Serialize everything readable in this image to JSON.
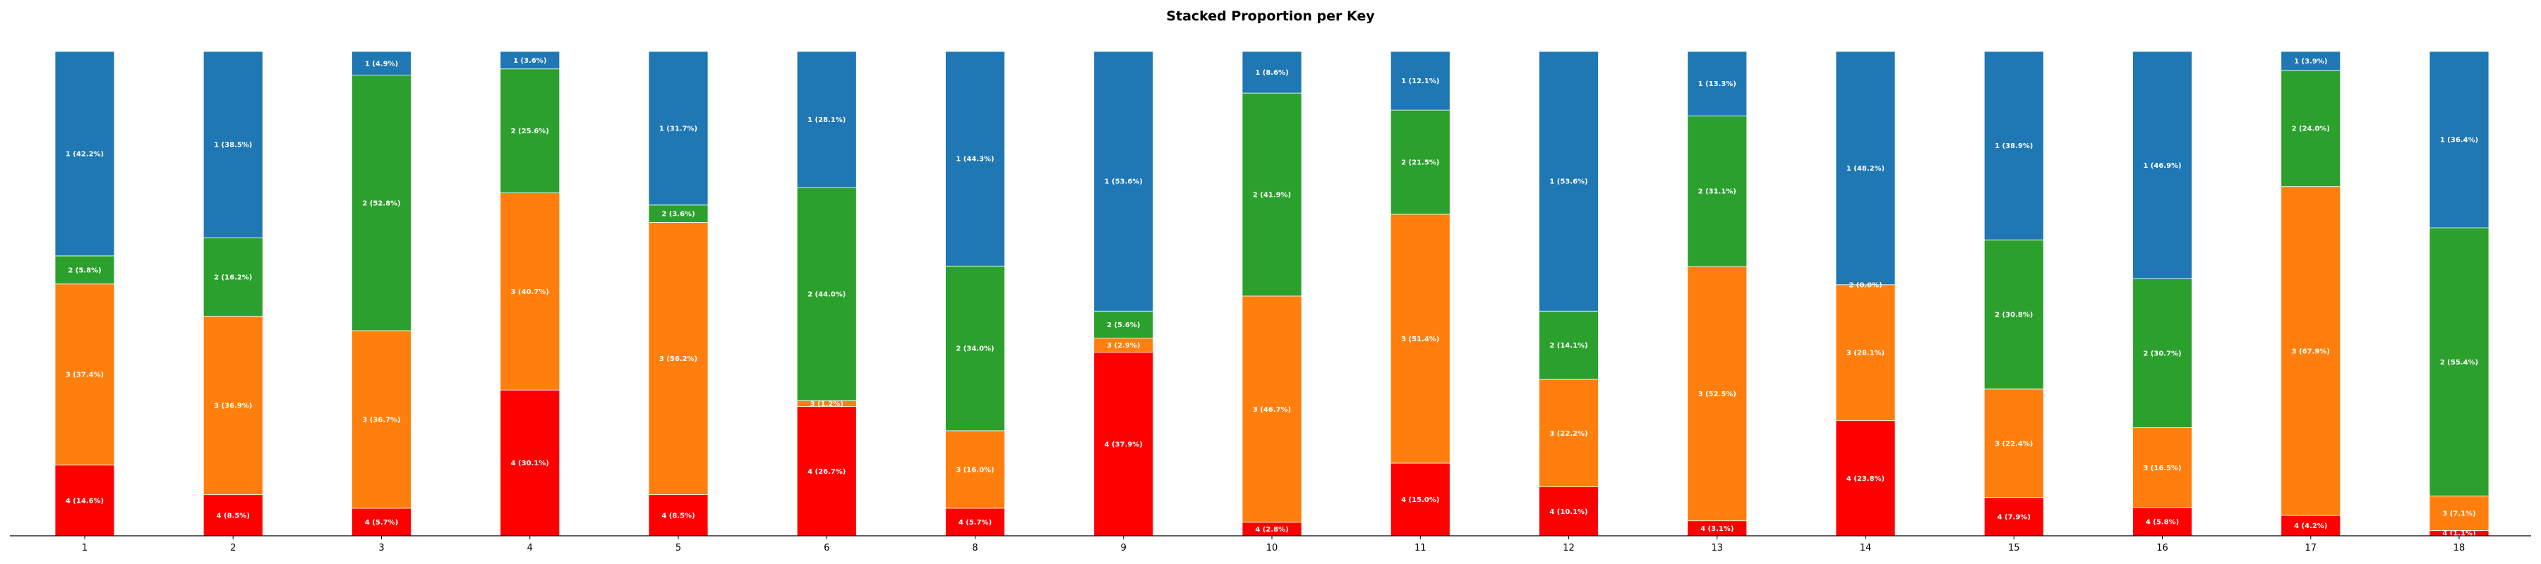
{
  "chart_data": {
    "type": "bar",
    "stacked": true,
    "title": "Stacked Proportion per Key",
    "xlabel": "",
    "ylabel": "",
    "ylim": [
      0,
      100
    ],
    "categories": [
      "1",
      "2",
      "3",
      "4",
      "5",
      "6",
      "8",
      "9",
      "10",
      "11",
      "12",
      "13",
      "14",
      "15",
      "16",
      "17",
      "18"
    ],
    "series": [
      {
        "name": "4",
        "color": "#ff0000",
        "values": [
          14.6,
          8.5,
          5.7,
          30.1,
          8.5,
          26.7,
          5.7,
          37.9,
          2.8,
          15.0,
          10.1,
          3.1,
          23.8,
          7.9,
          5.8,
          4.2,
          1.1
        ]
      },
      {
        "name": "3",
        "color": "#ff7f0e",
        "values": [
          37.4,
          36.9,
          36.7,
          40.7,
          56.2,
          1.2,
          16.0,
          2.9,
          46.7,
          51.4,
          22.2,
          52.5,
          28.1,
          22.4,
          16.5,
          67.9,
          7.1
        ]
      },
      {
        "name": "2",
        "color": "#2ca02c",
        "values": [
          5.8,
          16.2,
          52.8,
          25.6,
          3.6,
          44.0,
          34.0,
          5.6,
          41.9,
          21.5,
          14.1,
          31.1,
          0.0,
          30.8,
          30.7,
          24.0,
          55.4
        ]
      },
      {
        "name": "1",
        "color": "#1f77b4",
        "values": [
          42.2,
          38.5,
          4.9,
          3.6,
          31.7,
          28.1,
          44.3,
          53.6,
          8.6,
          12.1,
          53.6,
          13.3,
          48.2,
          38.9,
          46.9,
          3.9,
          36.4
        ]
      }
    ],
    "labels": [
      [
        "4 (14.6%)",
        "4 (8.5%)",
        "4 (5.7%)",
        "4 (30.1%)",
        "4 (8.5%)",
        "4 (26.7%)",
        "4 (5.7%)",
        "4 (37.9%)",
        "4 (2.8%)",
        "4 (15.0%)",
        "4 (10.1%)",
        "4 (3.1%)",
        "4 (23.8%)",
        "4 (7.9%)",
        "4 (5.8%)",
        "4 (4.2%)",
        "4 (1.1%)"
      ],
      [
        "3 (37.4%)",
        "3 (36.9%)",
        "3 (36.7%)",
        "3 (40.7%)",
        "3 (56.2%)",
        "3 (1.2%)",
        "3 (16.0%)",
        "3 (2.9%)",
        "3 (46.7%)",
        "3 (51.4%)",
        "3 (22.2%)",
        "3 (52.5%)",
        "3 (28.1%)",
        "3 (22.4%)",
        "3 (16.5%)",
        "3 (67.9%)",
        "3 (7.1%)"
      ],
      [
        "2 (5.8%)",
        "2 (16.2%)",
        "2 (52.8%)",
        "2 (25.6%)",
        "2 (3.6%)",
        "2 (44.0%)",
        "2 (34.0%)",
        "2 (5.6%)",
        "2 (41.9%)",
        "2 (21.5%)",
        "2 (14.1%)",
        "2 (31.1%)",
        "2 (0.0%)",
        "2 (30.8%)",
        "2 (30.7%)",
        "2 (24.0%)",
        "2 (55.4%)"
      ],
      [
        "1 (42.2%)",
        "1 (38.5%)",
        "1 (4.9%)",
        "1 (3.6%)",
        "1 (31.7%)",
        "1 (28.1%)",
        "1 (44.3%)",
        "1 (53.6%)",
        "1 (8.6%)",
        "1 (12.1%)",
        "1 (53.6%)",
        "1 (13.3%)",
        "1 (48.2%)",
        "1 (38.9%)",
        "1 (46.9%)",
        "1 (3.9%)",
        "1 (36.4%)"
      ]
    ],
    "grid": false,
    "legend": "none"
  }
}
